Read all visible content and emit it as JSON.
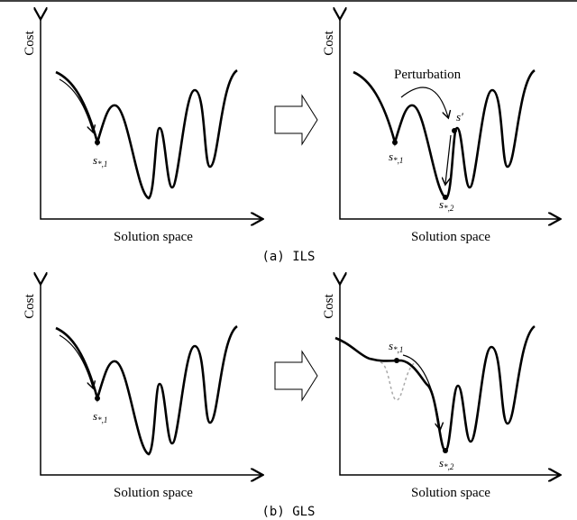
{
  "panels": [
    {
      "y_label": "Cost",
      "x_label": "Solution space",
      "points": [
        {
          "main": "s",
          "sub": "*,1"
        }
      ]
    },
    {
      "y_label": "Cost",
      "x_label": "Solution space",
      "annotation": "Perturbation",
      "points": [
        {
          "main": "s",
          "sub": "*,1"
        },
        {
          "main": "s′"
        },
        {
          "main": "s",
          "sub": "*,2"
        }
      ]
    },
    {
      "y_label": "Cost",
      "x_label": "Solution space",
      "points": [
        {
          "main": "s",
          "sub": "*,1"
        }
      ]
    },
    {
      "y_label": "Cost",
      "x_label": "Solution space",
      "points": [
        {
          "main": "s",
          "sub": "*,1"
        },
        {
          "main": "s",
          "sub": "*,2"
        }
      ]
    }
  ],
  "captions": [
    "(a) ILS",
    "(b) GLS"
  ]
}
